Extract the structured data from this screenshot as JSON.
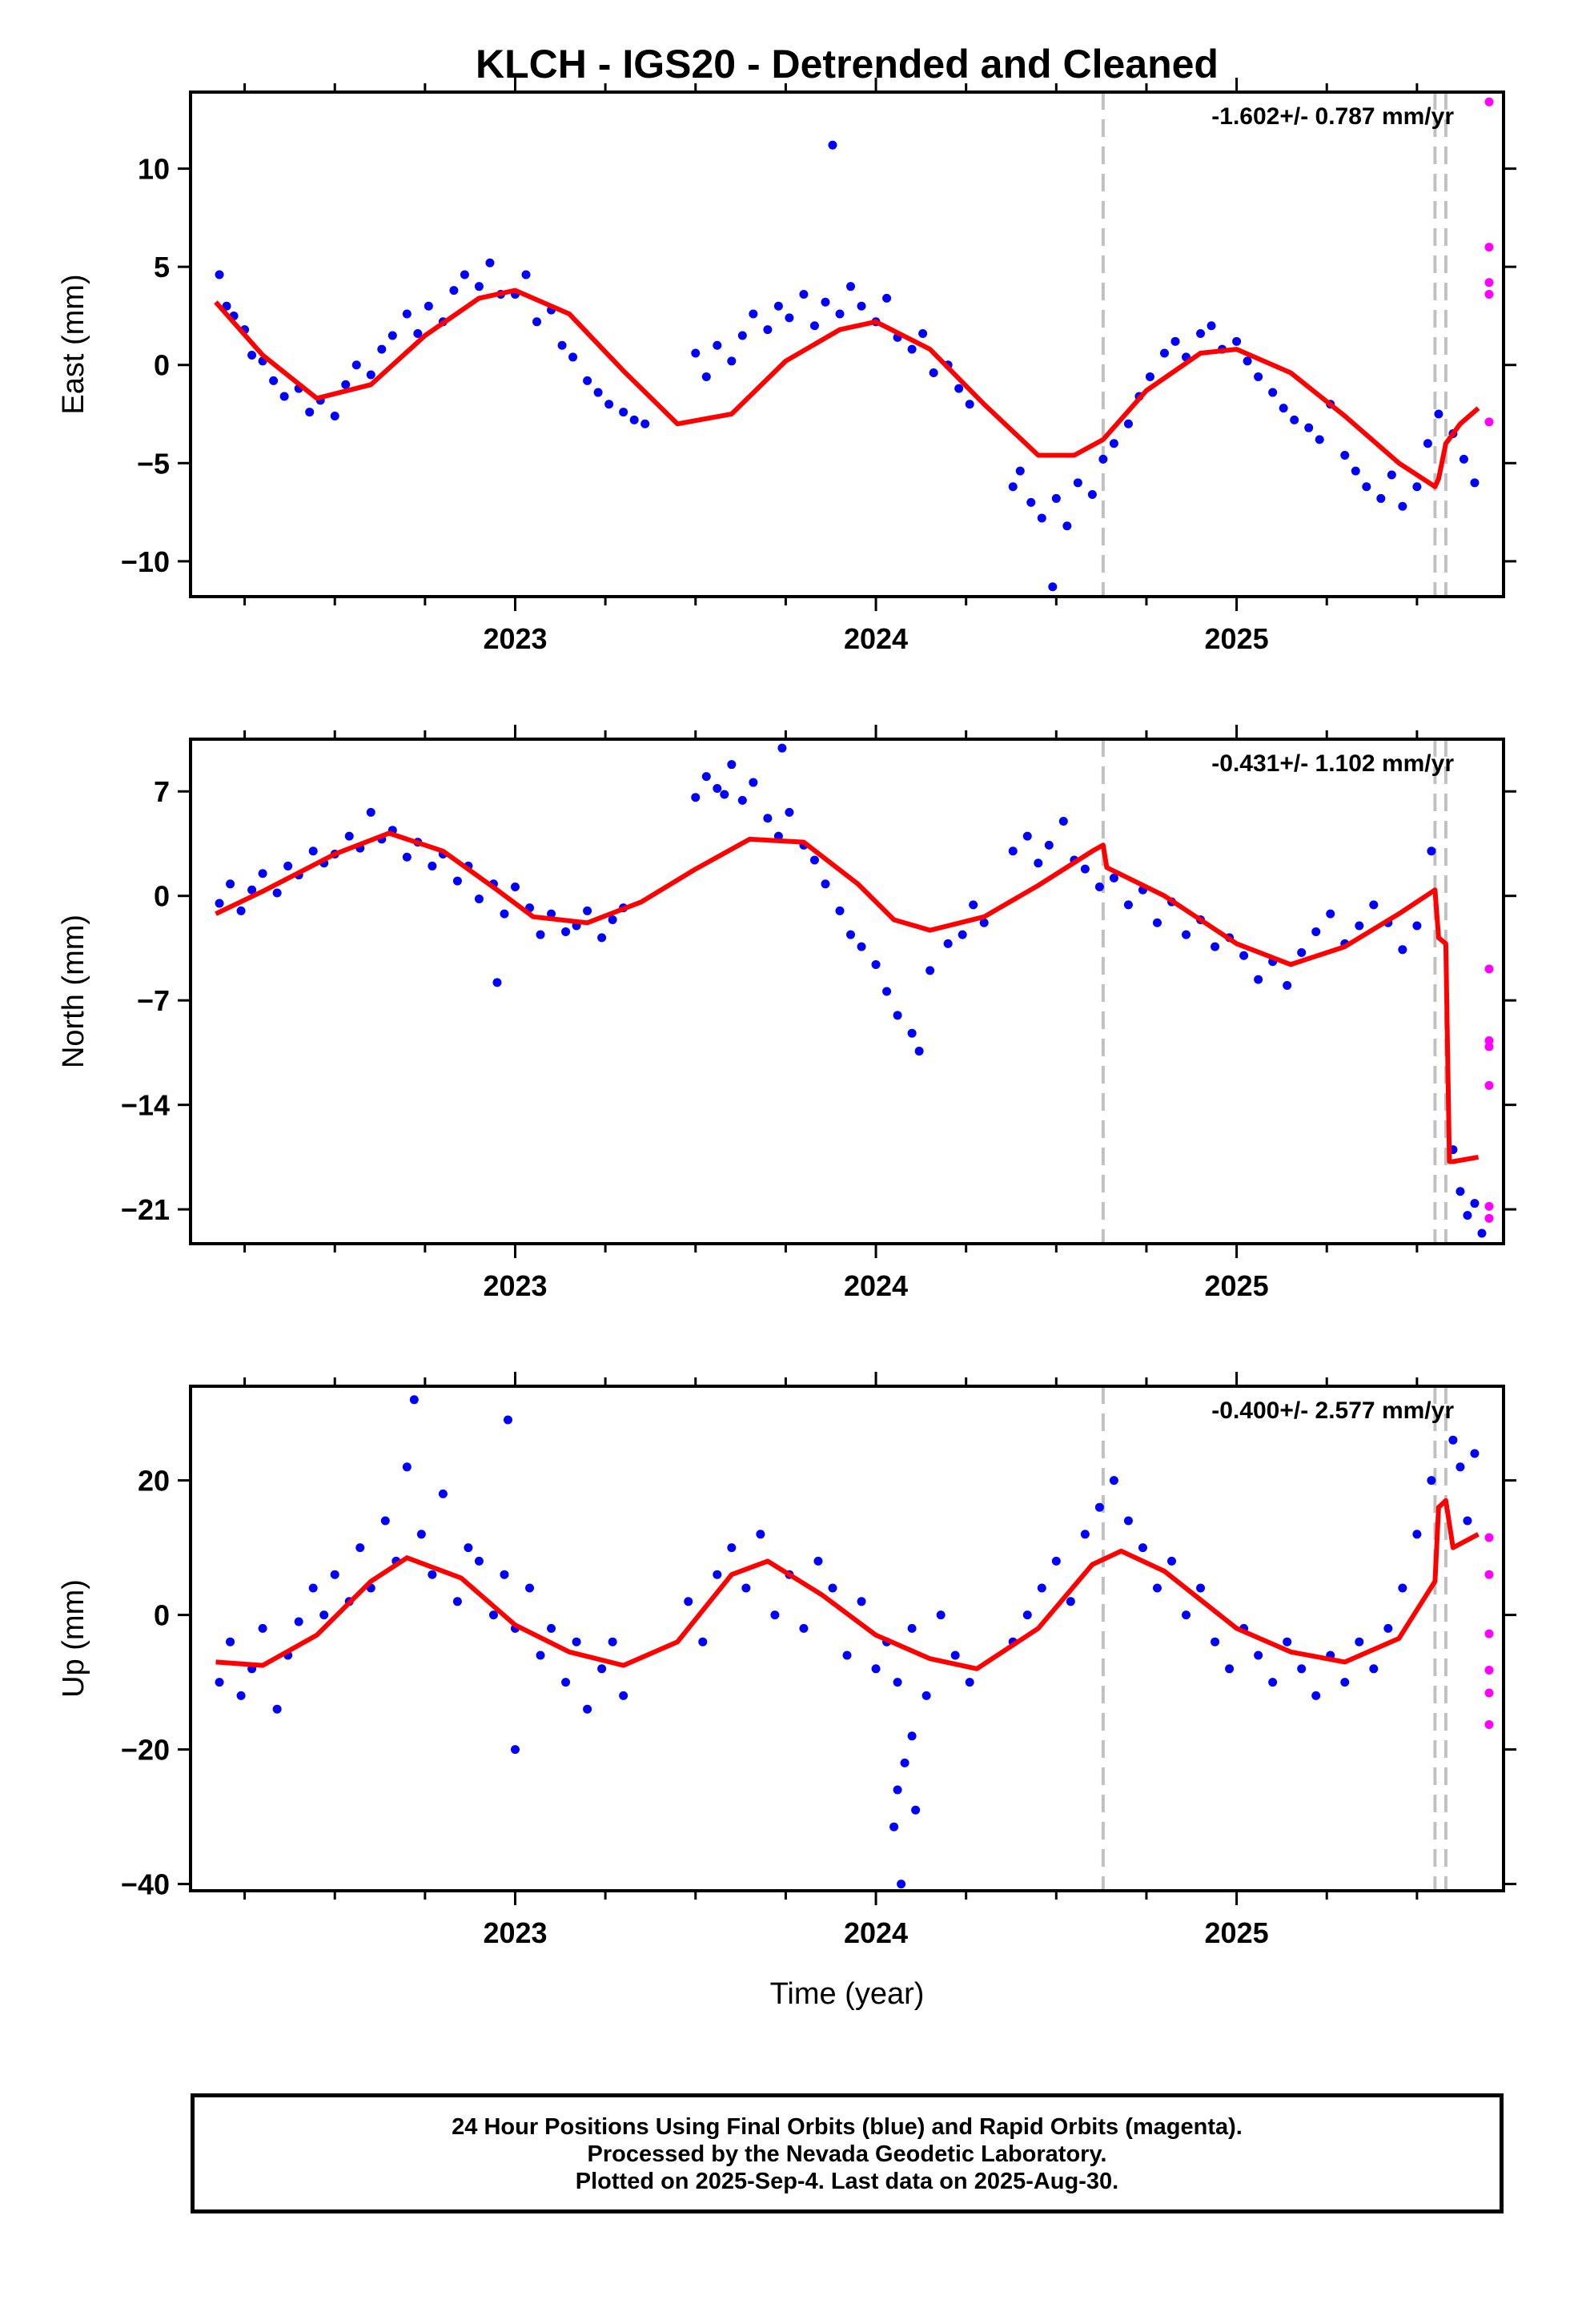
{
  "title": "KLCH - IGS20 - Detrended and Cleaned",
  "xlabel": "Time (year)",
  "footer": {
    "line1": "24 Hour Positions Using Final Orbits (blue) and Rapid Orbits (magenta).",
    "line2": "Processed by the Nevada Geodetic Laboratory.",
    "line3": "Plotted on 2025-Sep-4. Last data on 2025-Aug-30."
  },
  "colors": {
    "final": "#0000ff",
    "rapid": "#ff00ff",
    "model": "#ff0000",
    "event": "#c0c0c0"
  },
  "chart_data": [
    {
      "type": "scatter",
      "ylabel": "East (mm)",
      "rate": "-1.602+/- 0.787 mm/yr",
      "xlim": [
        2022.1,
        2025.74
      ],
      "ylim": [
        -11.8,
        13.9
      ],
      "yticks": [
        10,
        5,
        0,
        -5,
        -10
      ],
      "ytick_labels": [
        "10",
        "5",
        "0",
        "−5",
        "−10"
      ],
      "xticks": [
        2023,
        2024,
        2025
      ],
      "event_lines": [
        2024.63,
        2025.55,
        2025.58
      ],
      "model": {
        "x": [
          2022.17,
          2022.3,
          2022.45,
          2022.6,
          2022.75,
          2022.9,
          2023.0,
          2023.15,
          2023.3,
          2023.45,
          2023.6,
          2023.75,
          2023.9,
          2024.0,
          2024.15,
          2024.3,
          2024.45,
          2024.55,
          2024.63,
          2024.75,
          2024.9,
          2025.0,
          2025.15,
          2025.3,
          2025.45,
          2025.55,
          2025.56,
          2025.58,
          2025.62,
          2025.67
        ],
        "y": [
          3.2,
          0.5,
          -1.7,
          -1.0,
          1.5,
          3.4,
          3.8,
          2.6,
          -0.3,
          -3.0,
          -2.5,
          0.2,
          1.8,
          2.2,
          0.8,
          -2.0,
          -4.6,
          -4.6,
          -3.8,
          -1.3,
          0.6,
          0.8,
          -0.4,
          -2.6,
          -5.0,
          -6.2,
          -5.8,
          -4.0,
          -3.0,
          -2.2
        ]
      },
      "final_points": {
        "x": [
          2022.18,
          2022.2,
          2022.22,
          2022.25,
          2022.27,
          2022.3,
          2022.33,
          2022.36,
          2022.4,
          2022.43,
          2022.46,
          2022.5,
          2022.53,
          2022.56,
          2022.6,
          2022.63,
          2022.66,
          2022.7,
          2022.73,
          2022.76,
          2022.8,
          2022.83,
          2022.86,
          2022.9,
          2022.93,
          2022.96,
          2023.0,
          2023.03,
          2023.06,
          2023.1,
          2023.13,
          2023.16,
          2023.2,
          2023.23,
          2023.26,
          2023.3,
          2023.33,
          2023.36,
          2023.5,
          2023.53,
          2023.56,
          2023.6,
          2023.63,
          2023.66,
          2023.7,
          2023.73,
          2023.76,
          2023.8,
          2023.83,
          2023.86,
          2023.9,
          2023.93,
          2023.96,
          2024.0,
          2024.03,
          2024.06,
          2024.1,
          2024.13,
          2024.16,
          2024.2,
          2024.23,
          2024.26,
          2024.38,
          2024.4,
          2024.43,
          2024.46,
          2024.5,
          2024.53,
          2024.56,
          2024.6,
          2024.63,
          2024.66,
          2024.7,
          2024.73,
          2024.76,
          2024.8,
          2024.83,
          2024.86,
          2024.9,
          2024.93,
          2024.96,
          2025.0,
          2025.03,
          2025.06,
          2025.1,
          2025.13,
          2025.16,
          2025.2,
          2025.23,
          2025.26,
          2025.3,
          2025.33,
          2025.36,
          2025.4,
          2025.43,
          2025.46,
          2025.5,
          2025.53,
          2025.56,
          2025.6,
          2025.63,
          2025.66,
          2023.88,
          2024.49
        ],
        "y": [
          4.6,
          3.0,
          2.5,
          1.8,
          0.5,
          0.2,
          -0.8,
          -1.6,
          -1.2,
          -2.4,
          -1.8,
          -2.6,
          -1.0,
          0.0,
          -0.5,
          0.8,
          1.5,
          2.6,
          1.6,
          3.0,
          2.2,
          3.8,
          4.6,
          4.0,
          5.2,
          3.6,
          3.6,
          4.6,
          2.2,
          2.8,
          1.0,
          0.4,
          -0.8,
          -1.4,
          -2.0,
          -2.4,
          -2.8,
          -3.0,
          0.6,
          -0.6,
          1.0,
          0.2,
          1.5,
          2.6,
          1.8,
          3.0,
          2.4,
          3.6,
          2.0,
          3.2,
          2.6,
          4.0,
          3.0,
          2.2,
          3.4,
          1.4,
          0.8,
          1.6,
          -0.4,
          0.0,
          -1.2,
          -2.0,
          -6.2,
          -5.4,
          -7.0,
          -7.8,
          -6.8,
          -8.2,
          -6.0,
          -6.6,
          -4.8,
          -4.0,
          -3.0,
          -1.6,
          -0.6,
          0.6,
          1.2,
          0.4,
          1.6,
          2.0,
          0.8,
          1.2,
          0.2,
          -0.6,
          -1.4,
          -2.2,
          -2.8,
          -3.2,
          -3.8,
          -2.0,
          -4.6,
          -5.4,
          -6.2,
          -6.8,
          -5.6,
          -7.2,
          -6.2,
          -4.0,
          -2.5,
          -3.5,
          -4.8,
          -6.0,
          11.2,
          -11.3
        ]
      },
      "rapid_points": {
        "x": [
          2025.7,
          2025.7,
          2025.7,
          2025.7,
          2025.7
        ],
        "y": [
          13.4,
          6.0,
          4.2,
          3.6,
          -2.9
        ]
      }
    },
    {
      "type": "scatter",
      "ylabel": "North (mm)",
      "rate": "-0.431+/- 1.102 mm/yr",
      "xlim": [
        2022.1,
        2025.74
      ],
      "ylim": [
        -23.3,
        10.5
      ],
      "yticks": [
        7,
        0,
        -7,
        -14,
        -21
      ],
      "ytick_labels": [
        "7",
        "0",
        "−7",
        "−14",
        "−21"
      ],
      "xticks": [
        2023,
        2024,
        2025
      ],
      "event_lines": [
        2024.63,
        2025.55,
        2025.58
      ],
      "model": {
        "x": [
          2022.17,
          2022.3,
          2022.5,
          2022.65,
          2022.8,
          2022.95,
          2023.05,
          2023.2,
          2023.35,
          2023.5,
          2023.65,
          2023.8,
          2023.95,
          2024.05,
          2024.15,
          2024.3,
          2024.45,
          2024.6,
          2024.63,
          2024.64,
          2024.8,
          2025.0,
          2025.15,
          2025.3,
          2025.45,
          2025.55,
          2025.56,
          2025.58,
          2025.59,
          2025.6,
          2025.67
        ],
        "y": [
          -1.2,
          0.3,
          2.8,
          4.2,
          3.0,
          0.4,
          -1.4,
          -1.8,
          -0.4,
          1.8,
          3.8,
          3.6,
          0.8,
          -1.6,
          -2.3,
          -1.4,
          0.7,
          3.0,
          3.4,
          1.9,
          0.0,
          -3.2,
          -4.6,
          -3.4,
          -1.2,
          0.4,
          -2.8,
          -3.2,
          -17.8,
          -17.8,
          -17.5
        ]
      },
      "final_points": {
        "x": [
          2022.18,
          2022.21,
          2022.24,
          2022.27,
          2022.3,
          2022.34,
          2022.37,
          2022.4,
          2022.44,
          2022.47,
          2022.5,
          2022.54,
          2022.57,
          2022.6,
          2022.63,
          2022.66,
          2022.7,
          2022.73,
          2022.77,
          2022.8,
          2022.84,
          2022.87,
          2022.9,
          2022.94,
          2022.97,
          2023.0,
          2023.04,
          2023.07,
          2023.1,
          2023.14,
          2023.17,
          2023.2,
          2023.24,
          2023.27,
          2023.3,
          2023.5,
          2023.53,
          2023.56,
          2023.6,
          2023.63,
          2023.66,
          2023.7,
          2023.73,
          2023.76,
          2023.8,
          2023.83,
          2023.86,
          2023.9,
          2023.93,
          2023.96,
          2024.0,
          2024.03,
          2024.06,
          2024.1,
          2024.12,
          2024.15,
          2024.2,
          2024.24,
          2024.27,
          2024.3,
          2024.38,
          2024.42,
          2024.45,
          2024.48,
          2024.52,
          2024.55,
          2024.58,
          2024.62,
          2024.66,
          2024.7,
          2024.74,
          2024.78,
          2024.82,
          2024.86,
          2024.9,
          2024.94,
          2024.98,
          2025.02,
          2025.06,
          2025.1,
          2025.14,
          2025.18,
          2025.22,
          2025.26,
          2025.3,
          2025.34,
          2025.38,
          2025.42,
          2025.46,
          2025.5,
          2025.54,
          2025.6,
          2025.62,
          2025.64,
          2025.66,
          2025.68,
          2022.95,
          2023.58,
          2023.74
        ],
        "y": [
          -0.5,
          0.8,
          -1.0,
          0.4,
          1.5,
          0.2,
          2.0,
          1.4,
          3.0,
          2.2,
          2.8,
          4.0,
          3.2,
          5.6,
          3.8,
          4.4,
          2.6,
          3.6,
          2.0,
          2.8,
          1.0,
          2.0,
          -0.2,
          0.8,
          -1.2,
          0.6,
          -0.8,
          -2.6,
          -1.2,
          -2.4,
          -2.0,
          -1.0,
          -2.8,
          -1.6,
          -0.8,
          6.6,
          8.0,
          7.2,
          8.8,
          6.4,
          7.6,
          5.2,
          4.0,
          5.6,
          3.4,
          2.4,
          0.8,
          -1.0,
          -2.6,
          -3.4,
          -4.6,
          -6.4,
          -8.0,
          -9.2,
          -10.4,
          -5.0,
          -3.2,
          -2.6,
          -0.6,
          -1.8,
          3.0,
          4.0,
          2.2,
          3.4,
          5.0,
          2.4,
          1.8,
          0.6,
          1.2,
          -0.6,
          0.4,
          -1.8,
          -0.4,
          -2.6,
          -1.6,
          -3.4,
          -2.8,
          -4.0,
          -5.6,
          -4.4,
          -6.0,
          -3.8,
          -2.4,
          -1.2,
          -3.2,
          -2.0,
          -0.6,
          -1.8,
          -3.6,
          -2.0,
          3.0,
          -17.0,
          -19.8,
          -21.4,
          -20.6,
          -22.6,
          -5.8,
          6.8,
          9.9
        ]
      },
      "rapid_points": {
        "x": [
          2025.7,
          2025.7,
          2025.7,
          2025.7,
          2025.7,
          2025.7
        ],
        "y": [
          -4.9,
          -9.7,
          -10.1,
          -12.7,
          -20.8,
          -21.6
        ]
      }
    },
    {
      "type": "scatter",
      "ylabel": "Up (mm)",
      "rate": "-0.400+/- 2.577 mm/yr",
      "xlim": [
        2022.1,
        2025.74
      ],
      "ylim": [
        -41.0,
        34.0
      ],
      "yticks": [
        20,
        0,
        -20,
        -40
      ],
      "ytick_labels": [
        "20",
        "0",
        "−20",
        "−40"
      ],
      "xticks": [
        2023,
        2024,
        2025
      ],
      "event_lines": [
        2024.63,
        2025.55,
        2025.58
      ],
      "model": {
        "x": [
          2022.17,
          2022.3,
          2022.45,
          2022.6,
          2022.7,
          2022.85,
          2023.0,
          2023.15,
          2023.3,
          2023.45,
          2023.6,
          2023.7,
          2023.85,
          2024.0,
          2024.15,
          2024.28,
          2024.45,
          2024.6,
          2024.68,
          2024.8,
          2025.0,
          2025.15,
          2025.3,
          2025.45,
          2025.55,
          2025.56,
          2025.58,
          2025.6,
          2025.67
        ],
        "y": [
          -7.0,
          -7.5,
          -3.0,
          5.0,
          8.5,
          5.5,
          -1.5,
          -5.5,
          -7.5,
          -4.0,
          6.0,
          8.0,
          3.0,
          -3.0,
          -6.5,
          -8.0,
          -2.0,
          7.5,
          9.5,
          6.5,
          -2.0,
          -5.5,
          -7.0,
          -3.5,
          5.0,
          16.0,
          17.0,
          10.0,
          12.0
        ]
      },
      "final_points": {
        "x": [
          2022.18,
          2022.21,
          2022.24,
          2022.27,
          2022.3,
          2022.34,
          2022.37,
          2022.4,
          2022.44,
          2022.47,
          2022.5,
          2022.54,
          2022.57,
          2022.6,
          2022.64,
          2022.67,
          2022.7,
          2022.74,
          2022.77,
          2022.8,
          2022.84,
          2022.87,
          2022.9,
          2022.94,
          2022.97,
          2023.0,
          2023.04,
          2023.07,
          2023.1,
          2023.14,
          2023.17,
          2023.2,
          2023.24,
          2023.27,
          2023.3,
          2023.48,
          2023.52,
          2023.56,
          2023.6,
          2023.64,
          2023.68,
          2023.72,
          2023.76,
          2023.8,
          2023.84,
          2023.88,
          2023.92,
          2023.96,
          2024.0,
          2024.03,
          2024.06,
          2024.1,
          2024.14,
          2024.18,
          2024.22,
          2024.26,
          2024.38,
          2024.42,
          2024.46,
          2024.5,
          2024.54,
          2024.58,
          2024.62,
          2024.66,
          2024.7,
          2024.74,
          2024.78,
          2024.82,
          2024.86,
          2024.9,
          2024.94,
          2024.98,
          2025.02,
          2025.06,
          2025.1,
          2025.14,
          2025.18,
          2025.22,
          2025.26,
          2025.3,
          2025.34,
          2025.38,
          2025.42,
          2025.46,
          2025.5,
          2025.54,
          2025.6,
          2025.62,
          2025.64,
          2025.66,
          2022.72,
          2022.98,
          2023.0,
          2024.05,
          2024.06,
          2024.08,
          2024.1,
          2024.11,
          2024.07
        ],
        "y": [
          -10.0,
          -4.0,
          -12.0,
          -8.0,
          -2.0,
          -14.0,
          -6.0,
          -1.0,
          4.0,
          0.0,
          6.0,
          2.0,
          10.0,
          4.0,
          14.0,
          8.0,
          22.0,
          12.0,
          6.0,
          18.0,
          2.0,
          10.0,
          8.0,
          0.0,
          6.0,
          -2.0,
          4.0,
          -6.0,
          -2.0,
          -10.0,
          -4.0,
          -14.0,
          -8.0,
          -4.0,
          -12.0,
          2.0,
          -4.0,
          6.0,
          10.0,
          4.0,
          12.0,
          0.0,
          6.0,
          -2.0,
          8.0,
          4.0,
          -6.0,
          2.0,
          -8.0,
          -4.0,
          -10.0,
          -2.0,
          -12.0,
          0.0,
          -6.0,
          -10.0,
          -4.0,
          0.0,
          4.0,
          8.0,
          2.0,
          12.0,
          16.0,
          20.0,
          14.0,
          10.0,
          4.0,
          8.0,
          0.0,
          4.0,
          -4.0,
          -8.0,
          -2.0,
          -6.0,
          -10.0,
          -4.0,
          -8.0,
          -12.0,
          -6.0,
          -10.0,
          -4.0,
          -8.0,
          -2.0,
          4.0,
          12.0,
          20.0,
          26.0,
          22.0,
          14.0,
          24.0,
          32.0,
          29.0,
          -20.0,
          -31.5,
          -26.0,
          -22.0,
          -18.0,
          -29.0,
          -40.0
        ]
      },
      "rapid_points": {
        "x": [
          2025.7,
          2025.7,
          2025.7,
          2025.7,
          2025.7,
          2025.7
        ],
        "y": [
          11.5,
          6.0,
          -2.8,
          -8.2,
          -11.6,
          -16.3
        ]
      }
    }
  ]
}
